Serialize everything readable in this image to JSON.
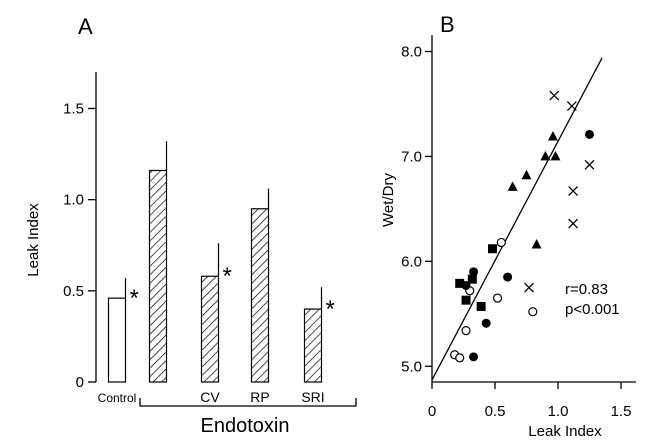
{
  "chart_data": [
    {
      "type": "bar",
      "panel_label": "A",
      "ylabel": "Leak Index",
      "ylim": [
        0,
        1.7
      ],
      "yticks": [
        "0",
        "0.5",
        "1.0",
        "1.5"
      ],
      "categories": [
        "Control",
        "",
        "CV",
        "RP",
        "SRI"
      ],
      "values": [
        0.46,
        1.16,
        0.58,
        0.95,
        0.4
      ],
      "errors": [
        0.11,
        0.16,
        0.18,
        0.11,
        0.12
      ],
      "hatched": [
        false,
        true,
        true,
        true,
        true
      ],
      "significant": [
        true,
        false,
        true,
        false,
        true
      ],
      "sig_marker": "*",
      "group_label": "Endotoxin",
      "grid": false
    },
    {
      "type": "scatter",
      "panel_label": "B",
      "xlabel": "Leak Index",
      "ylabel": "Wet/Dry",
      "xlim": [
        0,
        1.5
      ],
      "ylim": [
        4.85,
        8.1
      ],
      "xticks": [
        "0",
        "0.5",
        "1.0",
        "1.5"
      ],
      "yticks": [
        "5.0",
        "6.0",
        "7.0",
        "8.0"
      ],
      "grid": false,
      "series": [
        {
          "marker": "open-circle",
          "x": [
            0.18,
            0.22,
            0.27,
            0.3,
            0.52,
            0.55,
            0.8
          ],
          "y": [
            5.11,
            5.08,
            5.34,
            5.72,
            5.65,
            6.18,
            5.52
          ]
        },
        {
          "marker": "filled-circle",
          "x": [
            0.27,
            0.33,
            0.33,
            0.43,
            0.6,
            1.25
          ],
          "y": [
            5.77,
            5.09,
            5.9,
            5.41,
            5.85,
            7.21
          ]
        },
        {
          "marker": "filled-square",
          "x": [
            0.22,
            0.27,
            0.32,
            0.39,
            0.48
          ],
          "y": [
            5.79,
            5.63,
            5.83,
            5.57,
            6.12
          ]
        },
        {
          "marker": "filled-triangle",
          "x": [
            0.64,
            0.75,
            0.83,
            0.9,
            0.96,
            0.98
          ],
          "y": [
            6.71,
            6.82,
            6.16,
            7.0,
            7.19,
            7.0
          ]
        },
        {
          "marker": "cross",
          "x": [
            0.77,
            0.97,
            1.11,
            1.12,
            1.12,
            1.25
          ],
          "y": [
            5.75,
            7.58,
            7.48,
            6.67,
            6.36,
            6.92
          ]
        }
      ],
      "fit_line": {
        "x": [
          0,
          1.35
        ],
        "y": [
          4.87,
          7.94
        ]
      },
      "annotation": [
        "r=0.83",
        "p<0.001"
      ]
    }
  ]
}
